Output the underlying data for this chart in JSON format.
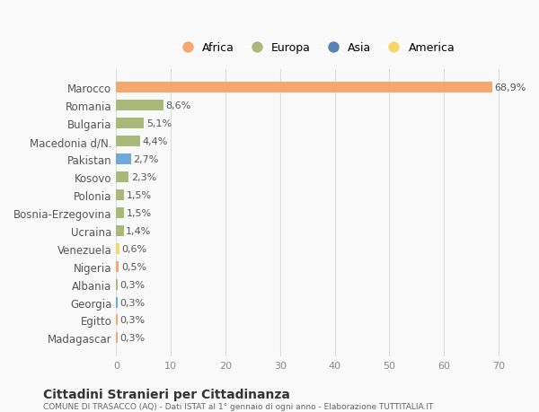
{
  "categories": [
    "Madagascar",
    "Egitto",
    "Georgia",
    "Albania",
    "Nigeria",
    "Venezuela",
    "Ucraina",
    "Bosnia-Erzegovina",
    "Polonia",
    "Kosovo",
    "Pakistan",
    "Macedonia d/N.",
    "Bulgaria",
    "Romania",
    "Marocco"
  ],
  "values": [
    0.3,
    0.3,
    0.3,
    0.3,
    0.5,
    0.6,
    1.4,
    1.5,
    1.5,
    2.3,
    2.7,
    4.4,
    5.1,
    8.6,
    68.9
  ],
  "labels": [
    "0,3%",
    "0,3%",
    "0,3%",
    "0,3%",
    "0,5%",
    "0,6%",
    "1,4%",
    "1,5%",
    "1,5%",
    "2,3%",
    "2,7%",
    "4,4%",
    "5,1%",
    "8,6%",
    "68,9%"
  ],
  "colors": [
    "#f5a86e",
    "#f5a86e",
    "#6fa8dc",
    "#aab87a",
    "#f5a86e",
    "#f9d56e",
    "#aab87a",
    "#aab87a",
    "#aab87a",
    "#aab87a",
    "#6fa8dc",
    "#aab87a",
    "#aab87a",
    "#aab87a",
    "#f5a86e"
  ],
  "legend": [
    {
      "label": "Africa",
      "color": "#f5a86e"
    },
    {
      "label": "Europa",
      "color": "#aab87a"
    },
    {
      "label": "Asia",
      "color": "#5a82b4"
    },
    {
      "label": "America",
      "color": "#f9d56e"
    }
  ],
  "title": "Cittadini Stranieri per Cittadinanza",
  "subtitle": "COMUNE DI TRASACCO (AQ) - Dati ISTAT al 1° gennaio di ogni anno - Elaborazione TUTTITALIA.IT",
  "xlim": [
    0,
    73
  ],
  "xticks": [
    0,
    10,
    20,
    30,
    40,
    50,
    60,
    70
  ],
  "background_color": "#f9f9f9",
  "bar_height": 0.6,
  "grid_color": "#dddddd"
}
